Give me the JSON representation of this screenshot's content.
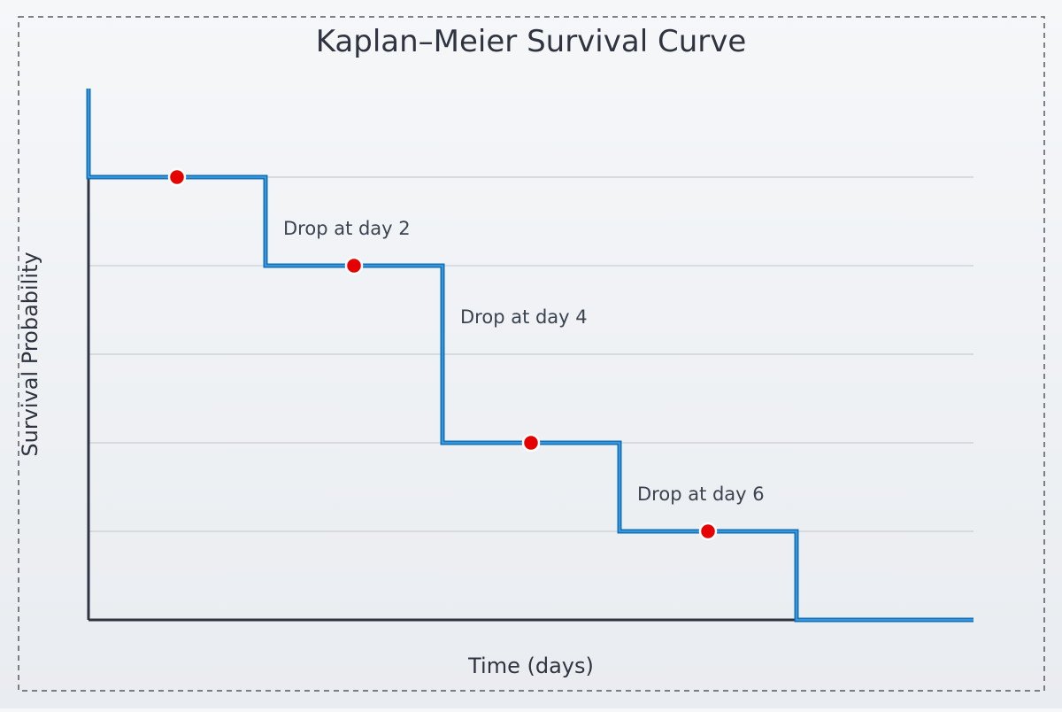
{
  "chart_data": {
    "type": "line",
    "step": true,
    "title": "Kaplan–Meier Survival Curve",
    "xlabel": "Time (days)",
    "ylabel": "Survival Probability",
    "xlim": [
      0,
      10
    ],
    "ylim": [
      0,
      1
    ],
    "grid": true,
    "x": [
      0,
      1,
      2,
      3,
      4,
      5,
      6,
      7,
      8,
      9,
      10
    ],
    "steps": [
      {
        "x": 0,
        "y": 1.0
      },
      {
        "x": 0,
        "y": 0.8
      },
      {
        "x": 2,
        "y": 0.8
      },
      {
        "x": 2,
        "y": 0.6
      },
      {
        "x": 4,
        "y": 0.6
      },
      {
        "x": 4,
        "y": 0.2
      },
      {
        "x": 6,
        "y": 0.2
      },
      {
        "x": 6,
        "y": 0.0
      },
      {
        "x": 8,
        "y": 0.0
      },
      {
        "x": 8,
        "y": -0.2
      },
      {
        "x": 10,
        "y": -0.2
      }
    ],
    "points": [
      {
        "x": 1,
        "y": 0.8
      },
      {
        "x": 3,
        "y": 0.6
      },
      {
        "x": 5,
        "y": 0.2
      },
      {
        "x": 7,
        "y": 0.0
      }
    ],
    "gridlines_y": [
      0.8,
      0.6,
      0.4,
      0.2,
      0.0
    ],
    "annotations": [
      {
        "text": "Drop at day 2",
        "x": 2.2,
        "y": 0.67
      },
      {
        "text": "Drop at day 4",
        "x": 4.2,
        "y": 0.47
      },
      {
        "text": "Drop at day 6",
        "x": 6.2,
        "y": 0.07
      }
    ],
    "colors": {
      "line": "#0a73c1",
      "point": "#e60000",
      "axis": "#2f3440",
      "grid": "#cfd3d8",
      "text": "#3b4250",
      "frame": "#555a63"
    }
  }
}
